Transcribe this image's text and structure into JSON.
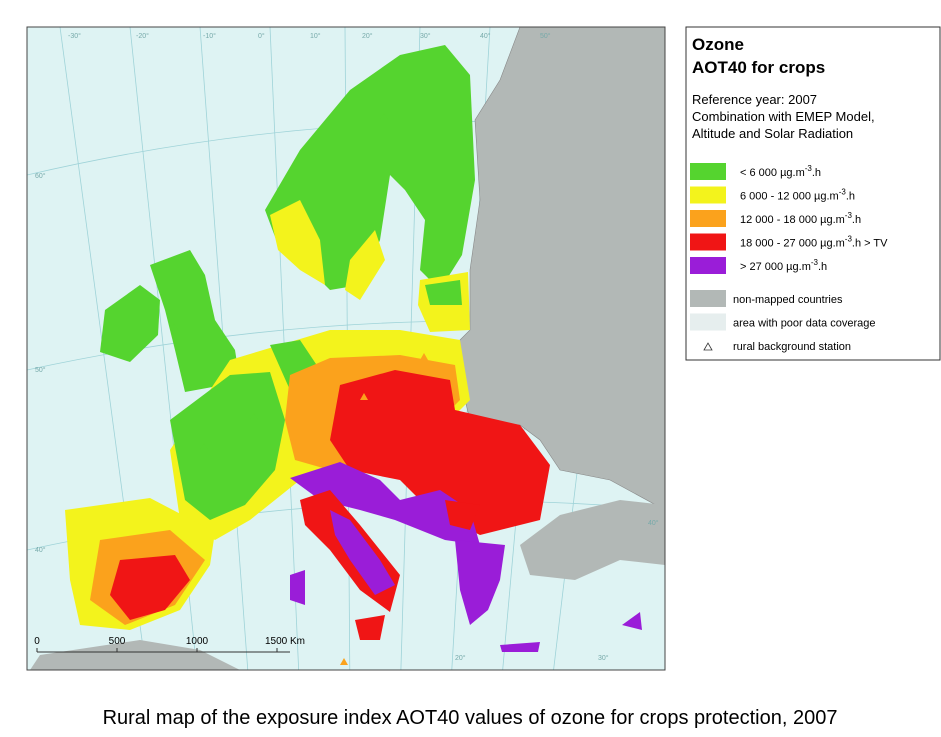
{
  "map": {
    "graticule_labels": [
      "-30°",
      "-20°",
      "-10°",
      "0°",
      "10°",
      "20°",
      "30°",
      "40°",
      "50°",
      "60°",
      "50°",
      "40°",
      "20°",
      "30°",
      "40°"
    ],
    "scale_bar": {
      "labels": [
        "0",
        "500",
        "1000",
        "1500 Km"
      ]
    }
  },
  "legend": {
    "title": "Ozone",
    "subtitle": "AOT40 for crops",
    "description": [
      "Reference year: 2007",
      "Combination with EMEP Model,",
      "Altitude and Solar Radiation"
    ],
    "classes": [
      {
        "color": "#55d42f",
        "label": "<  6 000  µg.m",
        "sup": "-3",
        "suffix": ".h"
      },
      {
        "color": "#f3f31c",
        "label": "6 000 - 12 000  µg.m",
        "sup": "-3",
        "suffix": ".h"
      },
      {
        "color": "#fba21c",
        "label": "12 000 - 18 000  µg.m",
        "sup": "-3",
        "suffix": ".h"
      },
      {
        "color": "#f01515",
        "label": "18 000 - 27 000  µg.m",
        "sup": "-3",
        "suffix": ".h  > TV"
      },
      {
        "color": "#9a1dd8",
        "label": ">  27 000  µg.m",
        "sup": "-3",
        "suffix": ".h"
      }
    ],
    "other": [
      {
        "color": "#b2b8b6",
        "label": "non-mapped countries"
      },
      {
        "color": "#e6eeee",
        "label": "area with poor data coverage"
      },
      {
        "label": "rural background station"
      }
    ]
  },
  "caption": "Rural map of the exposure index AOT40 values of ozone for crops protection, 2007"
}
